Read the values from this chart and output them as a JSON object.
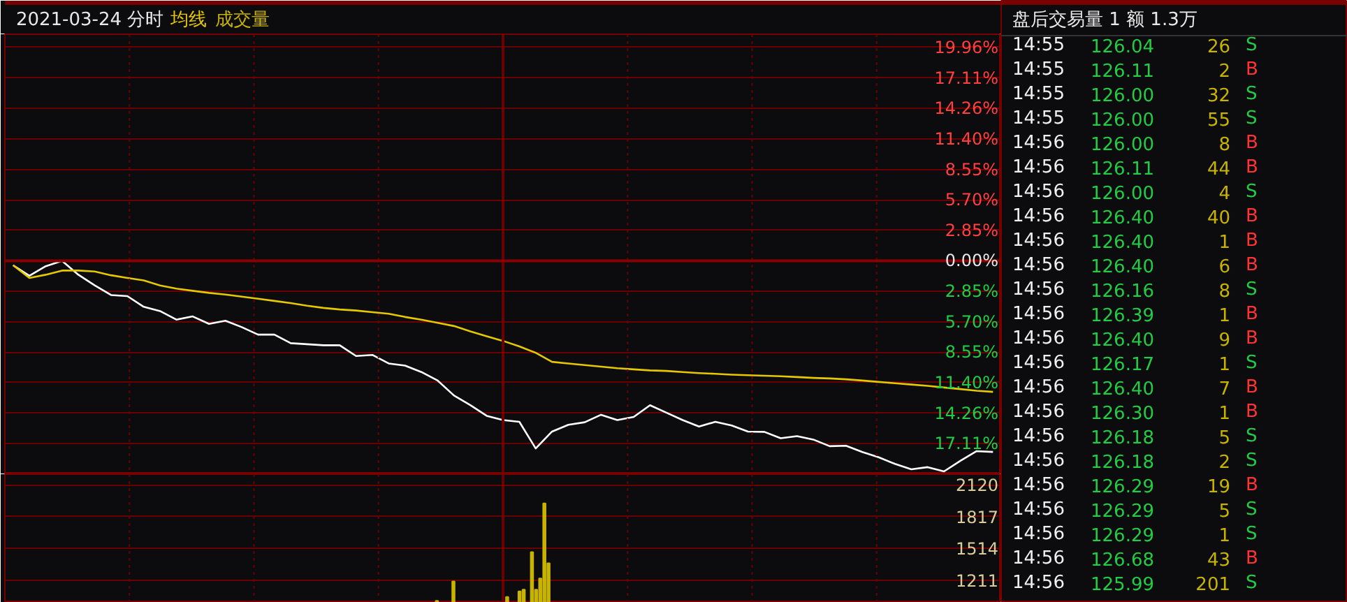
{
  "chart_data": [
    {
      "type": "line",
      "title": "2021-03-24 分时",
      "grid": true,
      "tick_labels": "y",
      "line_style": "solid",
      "marker": "none",
      "categories": [
        null,
        null,
        null,
        null,
        null,
        null,
        null,
        null,
        null,
        null,
        null,
        null,
        null,
        null,
        null,
        null,
        null,
        null,
        null,
        null,
        null,
        null,
        null,
        null,
        null,
        null,
        null,
        null,
        null,
        null,
        null,
        null,
        null,
        null,
        null,
        null,
        null,
        null,
        null,
        null,
        null,
        null,
        null,
        null,
        null,
        null,
        null,
        null,
        null,
        null,
        null,
        null,
        null,
        null,
        null,
        null,
        null,
        null,
        null,
        null,
        null
      ],
      "ylim": [
        -19.96,
        21.2
      ],
      "yticks": [
        {
          "value": 19.96,
          "label": "19.96%"
        },
        {
          "value": 17.11,
          "label": "17.11%"
        },
        {
          "value": 14.26,
          "label": "14.26%"
        },
        {
          "value": 11.4,
          "label": "11.40%"
        },
        {
          "value": 8.55,
          "label": "8.55%"
        },
        {
          "value": 5.7,
          "label": "5.70%"
        },
        {
          "value": 2.85,
          "label": "2.85%"
        },
        {
          "value": 0,
          "label": "0.00%"
        },
        {
          "value": -2.85,
          "label": "2.85%"
        },
        {
          "value": -5.7,
          "label": "5.70%"
        },
        {
          "value": -8.55,
          "label": "8.55%"
        },
        {
          "value": -11.4,
          "label": "11.40%"
        },
        {
          "value": -14.26,
          "label": "14.26%"
        },
        {
          "value": -17.11,
          "label": "17.11%"
        }
      ],
      "ref_lines": [
        {
          "axis": "y",
          "value": 0,
          "label": null,
          "color": "#8a0000"
        }
      ],
      "series": [
        {
          "color": "#ffffff",
          "values": [
            -0.41,
            -1.4,
            -0.5,
            0,
            -1.3,
            -2.3,
            -3.2,
            -3.3,
            -4.3,
            -4.7,
            -5.5,
            -5.2,
            -5.9,
            -5.6,
            -6.2,
            -6.9,
            -6.9,
            -7.7,
            -7.8,
            -7.9,
            -7.9,
            -8.9,
            -8.8,
            -9.6,
            -9.8,
            -10.4,
            -11.2,
            -12.6,
            -13.5,
            -14.5,
            -14.9,
            -15.06,
            -17.55,
            -15.97,
            -15.34,
            -15.1,
            -14.4,
            -14.9,
            -14.6,
            -13.51,
            -14.2,
            -14.9,
            -15.5,
            -15.06,
            -15.4,
            -15.97,
            -16.0,
            -16.6,
            -16.4,
            -16.72,
            -17.34,
            -17.3,
            -17.88,
            -18.38,
            -19.0,
            -19.5,
            -19.3,
            -19.7,
            -18.71,
            -17.8,
            -17.88
          ]
        },
        {
          "name": "均线",
          "color": "#e6c800",
          "values": [
            -0.41,
            -1.6,
            -1.3,
            -0.91,
            -0.91,
            -1.0,
            -1.35,
            -1.6,
            -1.83,
            -2.3,
            -2.6,
            -2.8,
            -3.0,
            -3.15,
            -3.35,
            -3.55,
            -3.75,
            -3.95,
            -4.2,
            -4.4,
            -4.55,
            -4.65,
            -4.8,
            -4.95,
            -5.25,
            -5.5,
            -5.8,
            -6.1,
            -6.6,
            -7.05,
            -7.49,
            -8.0,
            -8.6,
            -9.45,
            -9.6,
            -9.75,
            -9.9,
            -10.05,
            -10.15,
            -10.25,
            -10.3,
            -10.4,
            -10.5,
            -10.57,
            -10.65,
            -10.7,
            -10.75,
            -10.8,
            -10.87,
            -10.95,
            -11.0,
            -11.08,
            -11.2,
            -11.33,
            -11.45,
            -11.57,
            -11.7,
            -11.85,
            -12.0,
            -12.15,
            -12.26
          ]
        }
      ]
    },
    {
      "type": "bar",
      "grid": true,
      "tick_labels": "y",
      "categories": [
        null,
        null,
        null,
        null,
        null,
        null,
        null,
        null,
        null,
        null,
        null,
        null,
        null,
        null,
        null,
        null,
        null,
        null,
        null,
        null,
        null,
        null,
        null,
        null,
        null,
        null,
        null,
        null,
        null,
        null,
        null,
        null,
        null,
        null,
        null,
        null,
        null,
        null,
        null,
        null,
        null,
        null,
        null,
        null,
        null,
        null,
        null,
        null,
        null,
        null,
        null,
        null,
        null,
        null,
        null,
        null,
        null,
        null,
        null,
        null,
        null,
        null,
        null,
        null,
        null,
        null,
        null,
        null,
        null,
        null,
        null,
        null,
        null,
        null,
        null,
        null,
        null,
        null,
        null,
        null,
        null,
        null,
        null,
        null,
        null,
        null,
        null,
        null,
        null,
        null,
        null,
        null,
        null,
        null,
        null,
        null,
        null,
        null,
        null,
        null,
        null,
        null,
        null,
        null,
        null,
        null,
        null,
        null,
        null,
        null,
        null,
        null,
        null,
        null,
        null,
        null,
        null,
        null,
        null,
        null,
        null,
        null,
        null,
        null,
        null,
        null,
        null,
        null,
        null,
        null,
        null,
        null,
        null,
        null,
        null,
        null,
        null,
        null,
        null,
        null,
        null,
        null,
        null,
        null,
        null,
        null,
        null,
        null,
        null,
        null,
        null,
        null,
        null,
        null,
        null,
        null,
        null,
        null,
        null,
        null,
        null,
        null,
        null,
        null,
        null,
        null,
        null,
        null,
        null,
        null,
        null,
        null,
        null,
        null,
        null,
        null,
        null,
        null,
        null,
        null,
        null,
        null,
        null,
        null,
        null,
        null,
        null,
        null,
        null,
        null,
        null,
        null,
        null,
        null,
        null,
        null,
        null,
        null,
        null,
        null,
        null,
        null,
        null,
        null,
        null,
        null,
        null,
        null,
        null,
        null,
        null,
        null,
        null,
        null,
        null,
        null,
        null,
        null,
        null,
        null,
        null,
        null,
        null,
        null,
        null,
        null,
        null,
        null,
        null,
        null,
        null,
        null,
        null,
        null,
        null,
        null,
        null,
        null,
        null,
        null,
        null
      ],
      "ylim": [
        1000,
        2220
      ],
      "yticks": [
        2120,
        1817,
        1514,
        1211
      ],
      "series": [
        {
          "name": "成交量",
          "color": "#c8b400",
          "values": [
            null,
            null,
            null,
            null,
            null,
            null,
            null,
            null,
            null,
            null,
            null,
            null,
            null,
            null,
            null,
            null,
            null,
            null,
            null,
            null,
            null,
            null,
            null,
            null,
            null,
            null,
            null,
            null,
            null,
            null,
            null,
            null,
            null,
            null,
            null,
            null,
            null,
            null,
            null,
            null,
            null,
            null,
            null,
            null,
            null,
            null,
            null,
            null,
            null,
            null,
            null,
            null,
            null,
            null,
            null,
            null,
            null,
            null,
            null,
            null,
            null,
            null,
            null,
            null,
            null,
            null,
            null,
            null,
            null,
            null,
            null,
            null,
            null,
            null,
            null,
            null,
            null,
            null,
            null,
            null,
            null,
            null,
            null,
            null,
            null,
            null,
            null,
            null,
            null,
            null,
            null,
            null,
            null,
            null,
            null,
            null,
            null,
            null,
            null,
            null,
            null,
            null,
            null,
            null,
            1018,
            null,
            null,
            null,
            1203,
            null,
            null,
            null,
            null,
            null,
            null,
            null,
            null,
            null,
            null,
            null,
            null,
            1054,
            null,
            null,
            1107,
            1124,
            null,
            1481,
            1124,
            1230,
            1944,
            1375,
            null,
            null,
            null,
            null,
            null,
            null,
            null,
            null,
            null,
            null,
            null,
            null,
            null,
            null,
            null,
            null,
            null,
            null,
            null,
            null,
            null,
            null,
            null,
            null,
            null,
            null,
            null,
            null,
            null,
            null,
            null,
            null,
            null,
            null,
            null,
            null,
            null,
            null,
            null,
            null,
            null,
            null,
            null,
            null,
            null,
            null,
            null,
            null,
            null,
            null,
            null,
            null,
            null,
            null,
            null,
            null,
            null,
            null,
            null,
            null,
            null,
            null,
            null,
            null,
            null,
            null,
            null,
            null,
            null,
            null,
            null,
            null,
            null,
            null,
            null,
            null,
            null,
            null,
            null,
            null,
            null,
            null,
            null,
            null,
            null,
            null,
            null,
            null,
            null,
            null,
            null,
            null,
            null,
            null,
            null,
            null,
            null,
            null,
            null,
            null,
            null,
            null,
            null,
            null,
            null,
            null,
            null,
            null,
            null
          ]
        }
      ]
    },
    {
      "type": "other",
      "title": "盘后交易量 1 额 1.3万",
      "annotations": [
        "14:55 126.04 26 S",
        "14:55 126.11 2 B",
        "14:55 126.00 32 S",
        "14:55 126.00 55 S",
        "14:56 126.00 8 B",
        "14:56 126.11 44 B",
        "14:56 126.00 4 S",
        "14:56 126.40 40 B",
        "14:56 126.40 1 B",
        "14:56 126.40 6 B",
        "14:56 126.16 8 S",
        "14:56 126.39 1 B",
        "14:56 126.40 9 B",
        "14:56 126.17 1 S",
        "14:56 126.40 7 B",
        "14:56 126.30 1 B",
        "14:56 126.18 5 S",
        "14:56 126.18 2 S",
        "14:56 126.29 19 B",
        "14:56 126.29 5 S",
        "14:56 126.29 1 S",
        "14:56 126.68 43 B",
        "14:56 125.99 201 S"
      ],
      "colors": [
        "#22cc44",
        "#ff3333",
        "#22cc44",
        "#22cc44",
        "#ff3333",
        "#ff3333",
        "#22cc44",
        "#ff3333",
        "#ff3333",
        "#ff3333",
        "#22cc44",
        "#ff3333",
        "#ff3333",
        "#22cc44",
        "#ff3333",
        "#ff3333",
        "#22cc44",
        "#22cc44",
        "#ff3333",
        "#22cc44",
        "#22cc44",
        "#ff3333",
        "#22cc44"
      ]
    }
  ]
}
